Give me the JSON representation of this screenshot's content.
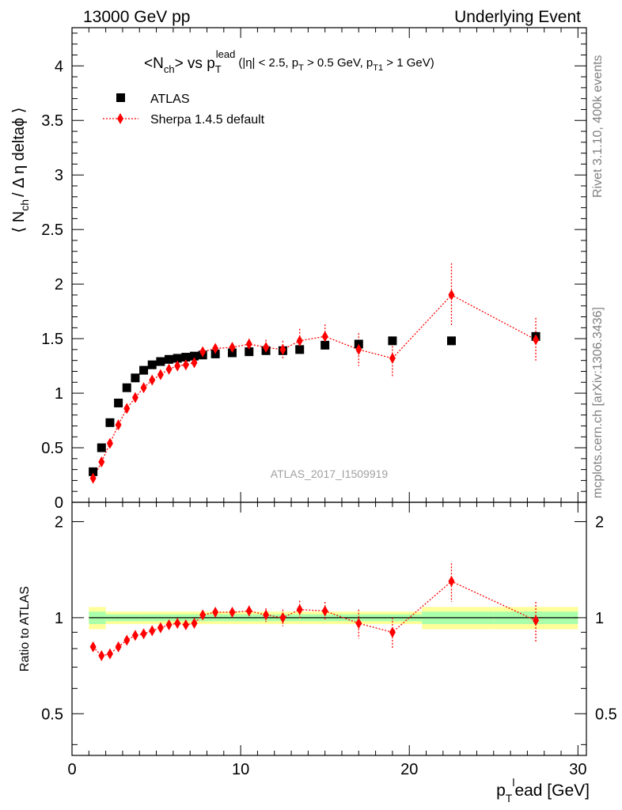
{
  "header": {
    "left": "13000 GeV pp",
    "right": "Underlying Event"
  },
  "side_labels": {
    "rivet": "Rivet 3.1.10,  400k events",
    "mcplots": "mcplots.cern.ch [arXiv:1306.3436]"
  },
  "analysis_label": "ATLAS_2017_I1509919",
  "plot_title": {
    "main_pre": "<N",
    "main_sub": "ch",
    "main_mid": "> vs p",
    "main_sub2": "T",
    "main_sup": "lead",
    "cut_1": "(|η| < 2.5, p",
    "cut_1_sub": "T",
    "cut_2": " > 0.5 GeV, p",
    "cut_2_sub": "T1",
    "cut_3": " > 1 GeV)"
  },
  "legend": {
    "atlas": "ATLAS",
    "sherpa": "Sherpa 1.4.5 default"
  },
  "axes": {
    "ylabel_pre": "⟨ N",
    "ylabel_sub": "ch",
    "ylabel_post": "/ Δ η deltaϕ ⟩",
    "ratio_ylabel": "Ratio to ATLAS",
    "xlabel_pre": "p",
    "xlabel_sub": "T",
    "xlabel_sup": "l",
    "xlabel_post": "ead [GeV]",
    "x_ticks": [
      "0",
      "10",
      "20",
      "30"
    ],
    "y_ticks": [
      "0",
      "0.5",
      "1",
      "1.5",
      "2",
      "2.5",
      "3",
      "3.5",
      "4"
    ],
    "ratio_ticks": [
      "0.5",
      "1",
      "2"
    ]
  },
  "colors": {
    "data": "#000000",
    "mc": "#ff0000",
    "band_inner": "#aaffaa",
    "band_outer": "#ffff99"
  },
  "chart_data": {
    "type": "scatter",
    "xlim": [
      0,
      30.5
    ],
    "ylim": [
      0,
      4.35
    ],
    "ratio_ylim": [
      0.37,
      2.3
    ],
    "ratio_scale": "log",
    "grid": false,
    "legend_position": "top-left",
    "series": [
      {
        "name": "ATLAS",
        "x": [
          1.25,
          1.75,
          2.25,
          2.75,
          3.25,
          3.75,
          4.25,
          4.75,
          5.25,
          5.75,
          6.25,
          6.75,
          7.25,
          7.75,
          8.5,
          9.5,
          10.5,
          11.5,
          12.5,
          13.5,
          15,
          17,
          19,
          22.5,
          27.5
        ],
        "y": [
          0.28,
          0.5,
          0.73,
          0.91,
          1.05,
          1.14,
          1.21,
          1.26,
          1.29,
          1.31,
          1.32,
          1.33,
          1.34,
          1.35,
          1.36,
          1.37,
          1.38,
          1.39,
          1.39,
          1.4,
          1.44,
          1.45,
          1.48,
          1.48,
          1.52
        ]
      },
      {
        "name": "Sherpa 1.4.5 default",
        "x": [
          1.25,
          1.75,
          2.25,
          2.75,
          3.25,
          3.75,
          4.25,
          4.75,
          5.25,
          5.75,
          6.25,
          6.75,
          7.25,
          7.75,
          8.5,
          9.5,
          10.5,
          11.5,
          12.5,
          13.5,
          15,
          17,
          19,
          22.5,
          27.5
        ],
        "y": [
          0.22,
          0.37,
          0.54,
          0.71,
          0.86,
          0.96,
          1.05,
          1.12,
          1.17,
          1.22,
          1.25,
          1.26,
          1.28,
          1.38,
          1.41,
          1.42,
          1.45,
          1.42,
          1.4,
          1.48,
          1.52,
          1.4,
          1.32,
          1.9,
          1.49
        ],
        "yerr": [
          0.01,
          0.01,
          0.01,
          0.01,
          0.01,
          0.01,
          0.01,
          0.01,
          0.01,
          0.01,
          0.01,
          0.02,
          0.02,
          0.03,
          0.03,
          0.04,
          0.05,
          0.07,
          0.08,
          0.11,
          0.11,
          0.15,
          0.17,
          0.29,
          0.2
        ],
        "ratio": [
          0.81,
          0.76,
          0.77,
          0.81,
          0.85,
          0.88,
          0.89,
          0.91,
          0.93,
          0.95,
          0.96,
          0.95,
          0.96,
          1.02,
          1.04,
          1.04,
          1.05,
          1.02,
          1.0,
          1.06,
          1.05,
          0.96,
          0.9,
          1.3,
          0.98
        ],
        "ratio_err": [
          0.01,
          0.01,
          0.01,
          0.01,
          0.01,
          0.01,
          0.01,
          0.01,
          0.01,
          0.01,
          0.01,
          0.01,
          0.01,
          0.02,
          0.02,
          0.03,
          0.04,
          0.05,
          0.06,
          0.07,
          0.07,
          0.1,
          0.1,
          0.18,
          0.14
        ]
      }
    ]
  }
}
